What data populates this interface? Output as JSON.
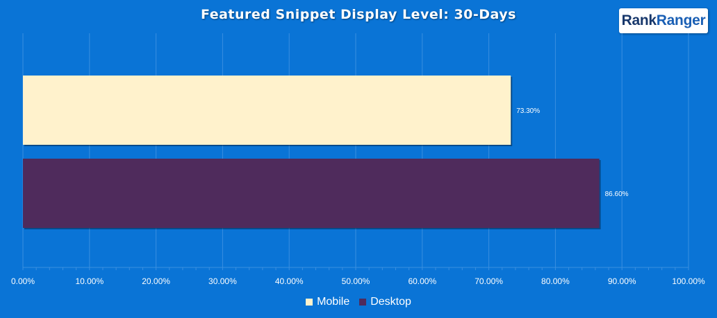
{
  "logo": {
    "part1": "Rank",
    "part2": "Ranger"
  },
  "chart_data": {
    "type": "bar",
    "orientation": "horizontal",
    "title": "Featured Snippet Display Level: 30-Days",
    "categories": [
      "Mobile",
      "Desktop"
    ],
    "series": [
      {
        "name": "Mobile",
        "value": 73.3,
        "label": "73.30%",
        "color": "#fff2cc"
      },
      {
        "name": "Desktop",
        "value": 86.6,
        "label": "86.60%",
        "color": "#4f2b5c"
      }
    ],
    "xlim": [
      0,
      100
    ],
    "x_ticks": [
      "0.00%",
      "10.00%",
      "20.00%",
      "30.00%",
      "40.00%",
      "50.00%",
      "60.00%",
      "70.00%",
      "80.00%",
      "90.00%",
      "100.00%"
    ],
    "grid": true,
    "legend_position": "bottom"
  },
  "colors": {
    "background": "#0a74d6",
    "gridline": "#3a8fe0",
    "text": "#ffffff"
  }
}
